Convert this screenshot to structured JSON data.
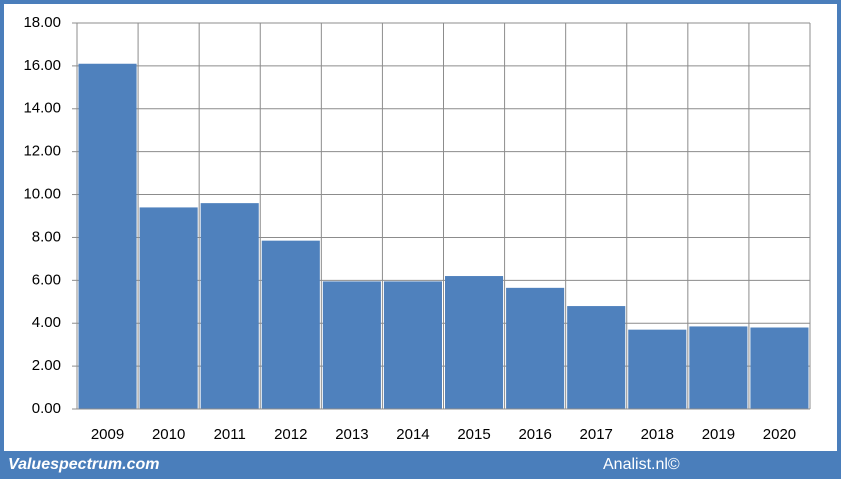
{
  "chart_data": {
    "type": "bar",
    "categories": [
      "2009",
      "2010",
      "2011",
      "2012",
      "2013",
      "2014",
      "2015",
      "2016",
      "2017",
      "2018",
      "2019",
      "2020"
    ],
    "values": [
      16.1,
      9.4,
      9.6,
      7.85,
      5.95,
      5.95,
      6.2,
      5.65,
      4.8,
      3.7,
      3.85,
      3.8
    ],
    "color": "#4f81bd",
    "ylim": [
      0,
      18
    ],
    "yticks": [
      {
        "value": 0,
        "label": "0.00"
      },
      {
        "value": 2,
        "label": "2.00"
      },
      {
        "value": 4,
        "label": "4.00"
      },
      {
        "value": 6,
        "label": "6.00"
      },
      {
        "value": 8,
        "label": "8.00"
      },
      {
        "value": 10,
        "label": "10.00"
      },
      {
        "value": 12,
        "label": "12.00"
      },
      {
        "value": 14,
        "label": "14.00"
      },
      {
        "value": 16,
        "label": "16.00"
      },
      {
        "value": 18,
        "label": "18.00"
      }
    ],
    "grid": true
  },
  "footer": {
    "left": "Valuespectrum.com",
    "right": "Analist.nl©"
  }
}
